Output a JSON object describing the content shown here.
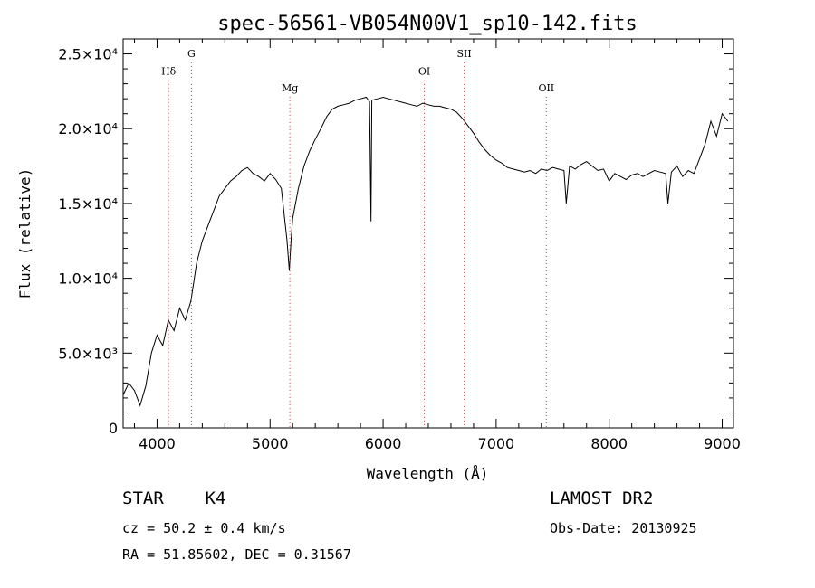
{
  "chart_data": {
    "type": "line",
    "title": "spec-56561-VB054N00V1_sp10-142.fits",
    "xlabel": "Wavelength (Å)",
    "ylabel": "Flux (relative)",
    "xlim": [
      3700,
      9100
    ],
    "ylim": [
      0,
      26000
    ],
    "x_ticks": [
      4000,
      5000,
      6000,
      7000,
      8000,
      9000
    ],
    "y_ticks": [
      {
        "value": 0,
        "label": "0"
      },
      {
        "value": 5000,
        "label": "5.0×10³"
      },
      {
        "value": 10000,
        "label": "1.0×10⁴"
      },
      {
        "value": 15000,
        "label": "1.5×10⁴"
      },
      {
        "value": 20000,
        "label": "2.0×10⁴"
      },
      {
        "value": 25000,
        "label": "2.5×10⁴"
      }
    ],
    "line_color": "#000000",
    "marker_color": "#cc3333",
    "lines": [
      {
        "name": "Hδ",
        "wavelength": 4102,
        "label_y": 23600
      },
      {
        "name": "G",
        "wavelength": 4304,
        "label_y": 24800
      },
      {
        "name": "Mg",
        "wavelength": 5175,
        "label_y": 22500
      },
      {
        "name": "OI",
        "wavelength": 6364,
        "label_y": 23600
      },
      {
        "name": "SII",
        "wavelength": 6717,
        "label_y": 24800
      },
      {
        "name": "OII",
        "wavelength": 7444,
        "label_y": 22500
      }
    ],
    "series": [
      {
        "x": [
          3700,
          3750,
          3800,
          3850,
          3900,
          3950,
          4000,
          4050,
          4100,
          4150,
          4200,
          4250,
          4300,
          4350,
          4400,
          4450,
          4500,
          4550,
          4600,
          4650,
          4700,
          4750,
          4800,
          4850,
          4900,
          4950,
          5000,
          5050,
          5100,
          5150,
          5170,
          5185,
          5200,
          5250,
          5300,
          5350,
          5400,
          5450,
          5500,
          5550,
          5600,
          5650,
          5700,
          5750,
          5800,
          5850,
          5880,
          5893,
          5900,
          5950,
          6000,
          6050,
          6100,
          6150,
          6200,
          6250,
          6300,
          6350,
          6400,
          6450,
          6500,
          6550,
          6600,
          6650,
          6700,
          6750,
          6800,
          6850,
          6900,
          6950,
          7000,
          7050,
          7100,
          7150,
          7200,
          7250,
          7300,
          7350,
          7400,
          7450,
          7500,
          7550,
          7600,
          7620,
          7650,
          7700,
          7750,
          7800,
          7850,
          7900,
          7950,
          8000,
          8050,
          8100,
          8150,
          8200,
          8250,
          8300,
          8350,
          8400,
          8450,
          8500,
          8520,
          8550,
          8600,
          8650,
          8700,
          8750,
          8800,
          8850,
          8900,
          8950,
          9000,
          9050
        ],
        "y": [
          2200,
          3000,
          2500,
          1500,
          2800,
          5000,
          6200,
          5500,
          7200,
          6500,
          8000,
          7200,
          8500,
          11000,
          12500,
          13500,
          14500,
          15500,
          16000,
          16500,
          16800,
          17200,
          17400,
          17000,
          16800,
          16500,
          17000,
          16600,
          16000,
          12500,
          10500,
          12500,
          14000,
          16000,
          17500,
          18500,
          19300,
          20000,
          20800,
          21300,
          21500,
          21600,
          21700,
          21900,
          22000,
          22100,
          21800,
          13800,
          21900,
          22000,
          22100,
          22000,
          21900,
          21800,
          21700,
          21600,
          21500,
          21700,
          21600,
          21500,
          21500,
          21400,
          21300,
          21100,
          20700,
          20200,
          19700,
          19100,
          18600,
          18200,
          17900,
          17700,
          17400,
          17300,
          17200,
          17100,
          17200,
          17000,
          17300,
          17200,
          17400,
          17300,
          17200,
          15000,
          17500,
          17300,
          17600,
          17800,
          17500,
          17200,
          17300,
          16500,
          17000,
          16800,
          16600,
          16900,
          17000,
          16800,
          17000,
          17200,
          17100,
          17000,
          15000,
          17100,
          17500,
          16800,
          17200,
          17000,
          18000,
          19000,
          20500,
          19500,
          21000,
          20500
        ]
      }
    ]
  },
  "info": {
    "object_class": "STAR",
    "subclass": "K4",
    "cz": "cz = 50.2 ± 0.4 km/s",
    "radec": "RA =  51.85602, DEC =   0.31567",
    "survey": "LAMOST DR2",
    "obs_date": "Obs-Date: 20130925"
  }
}
